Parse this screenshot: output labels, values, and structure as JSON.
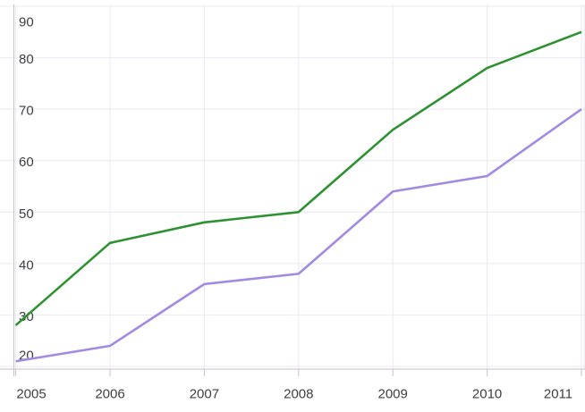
{
  "chart_data": {
    "type": "line",
    "title": "",
    "xlabel": "",
    "ylabel": "",
    "x": [
      2005,
      2006,
      2007,
      2008,
      2009,
      2010,
      2011
    ],
    "x_tick_labels": [
      "2005",
      "2006",
      "2007",
      "2008",
      "2009",
      "2010",
      "2011"
    ],
    "y_ticks": [
      20,
      30,
      40,
      50,
      60,
      70,
      80,
      90
    ],
    "y_tick_labels": [
      "20",
      "30",
      "40",
      "50",
      "60",
      "70",
      "80",
      "90"
    ],
    "ylim": [
      20,
      90
    ],
    "grid": true,
    "legend": "none",
    "series": [
      {
        "name": "green",
        "color": "#2e9132",
        "values": [
          28,
          44,
          48,
          50,
          66,
          78,
          85
        ]
      },
      {
        "name": "purple",
        "color": "#a28ae0",
        "values": [
          21,
          24,
          36,
          38,
          54,
          57,
          70
        ]
      }
    ],
    "colors": {
      "grid": "#ece8f2",
      "axis": "#c5c2cb",
      "tick_label": "#3f3f3f",
      "background": "#ffffff"
    }
  }
}
